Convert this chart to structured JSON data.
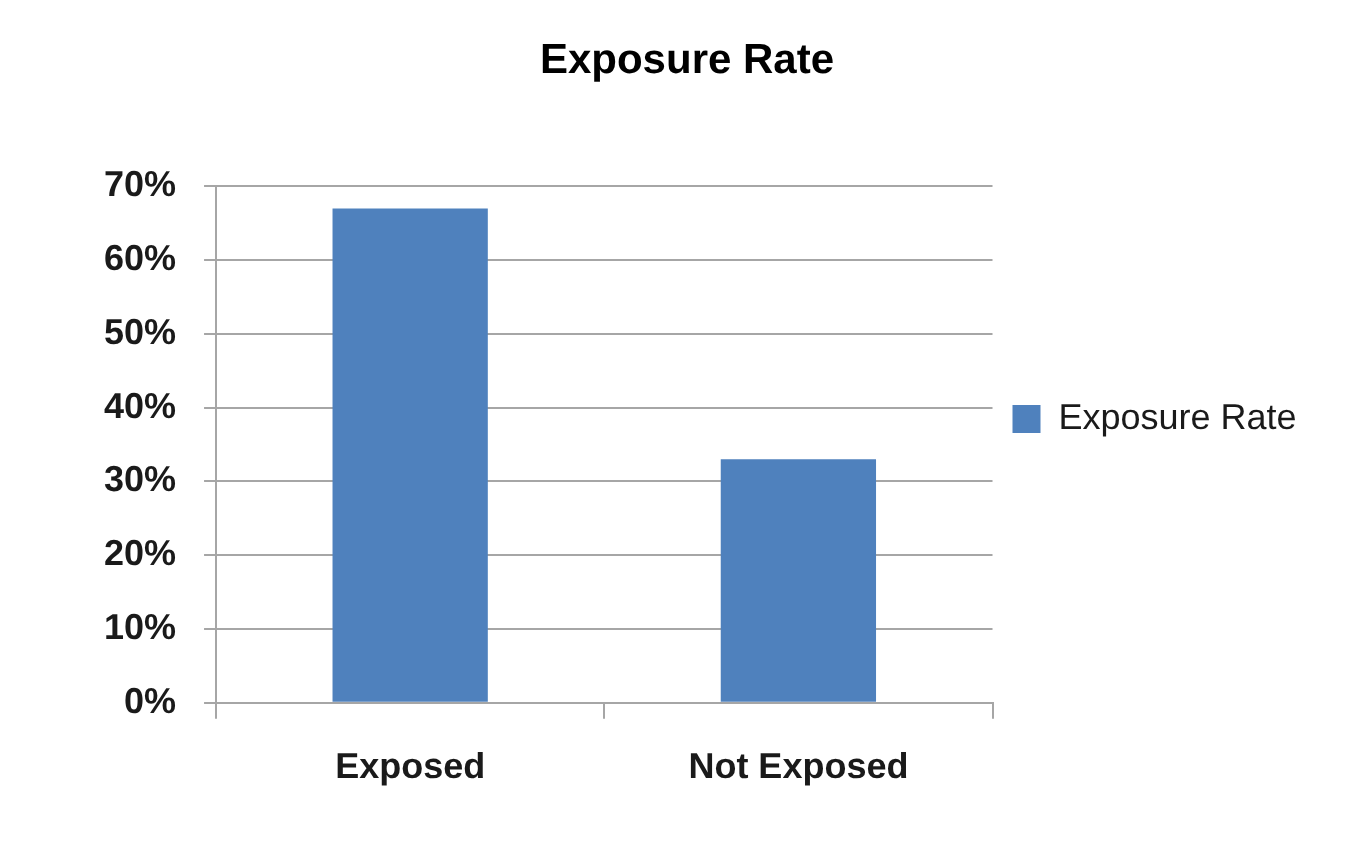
{
  "chart_data": {
    "type": "bar",
    "title": "Exposure Rate",
    "categories": [
      "Exposed",
      "Not Exposed"
    ],
    "series": [
      {
        "name": "Exposure Rate",
        "color": "#4f81bd",
        "values": [
          67,
          33
        ]
      }
    ],
    "ylim": [
      0,
      70
    ],
    "yticks": [
      {
        "value": 0,
        "label": "0%"
      },
      {
        "value": 10,
        "label": "10%"
      },
      {
        "value": 20,
        "label": "20%"
      },
      {
        "value": 30,
        "label": "30%"
      },
      {
        "value": 40,
        "label": "40%"
      },
      {
        "value": 50,
        "label": "50%"
      },
      {
        "value": 60,
        "label": "60%"
      },
      {
        "value": 70,
        "label": "70%"
      }
    ],
    "grid": "y",
    "legend": "right"
  }
}
